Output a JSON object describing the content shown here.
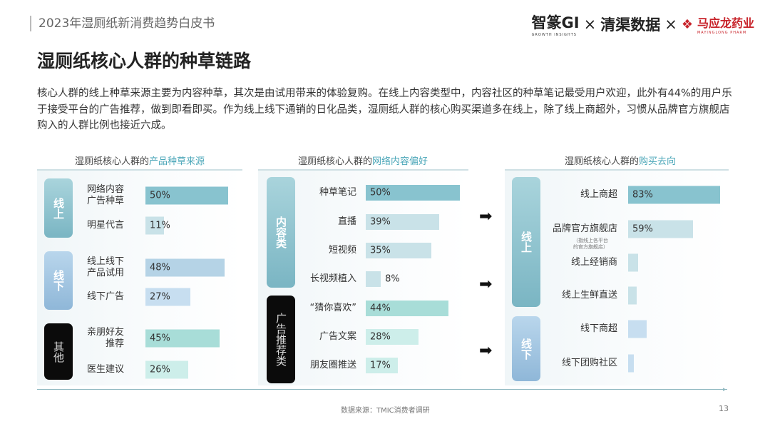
{
  "header": {
    "doc_title": "2023年湿厕纸新消费趋势白皮书",
    "logos": {
      "zhizhuan": "智篆GI",
      "zhizhuan_sub": "GROWTH  INSIGHTS",
      "times": "×",
      "qingqu": "清渠数据",
      "mayinglong": "马应龙药业",
      "mayinglong_sub": "MAYINGLONG PHARM"
    }
  },
  "title": "湿厕纸核心人群的种草链路",
  "intro": "核心人群的线上种草来源主要为内容种草，其次是由试用带来的体验复购。在线上内容类型中，内容社区的种草笔记最受用户欢迎，此外有44%的用户乐于接受平台的广告推荐，做到即看即买。作为线上线下通销的日化品类，湿厕纸人群的核心购买渠道多在线上，除了线上商超外，习惯从品牌官方旗舰店购入的人群比例也接近六成。",
  "colors": {
    "teal": "#7dbfcb",
    "blue": "#9cc4e0",
    "black": "#111111",
    "mint": "#a8ddd8",
    "accent": "#4aa6b8"
  },
  "panels": [
    {
      "title_prefix": "湿厕纸核心人群的",
      "title_highlight": "产品种草来源",
      "groups": [
        {
          "tag": "线上",
          "color": "teal",
          "rows": [
            {
              "label": "网络内容\n广告种草",
              "value": 50,
              "shown": "50%"
            },
            {
              "label": "明星代言",
              "value": 11,
              "shown": "11%"
            }
          ]
        },
        {
          "tag": "线下",
          "color": "blue",
          "rows": [
            {
              "label": "线上线下\n产品试用",
              "value": 48,
              "shown": "48%"
            },
            {
              "label": "线下广告",
              "value": 27,
              "shown": "27%"
            }
          ]
        },
        {
          "tag": "其他",
          "color": "black",
          "rows": [
            {
              "label": "亲朋好友\n推荐",
              "value": 45,
              "shown": "45%"
            },
            {
              "label": "医生建议",
              "value": 26,
              "shown": "26%"
            }
          ]
        }
      ]
    },
    {
      "title_prefix": "湿厕纸核心人群的",
      "title_highlight": "网络内容偏好",
      "groups": [
        {
          "tag": "内容类",
          "color": "teal",
          "rows": [
            {
              "label": "种草笔记",
              "value": 50,
              "shown": "50%"
            },
            {
              "label": "直播",
              "value": 39,
              "shown": "39%"
            },
            {
              "label": "短视频",
              "value": 35,
              "shown": "35%"
            },
            {
              "label": "长视频植入",
              "value": 8,
              "shown": "8%"
            }
          ]
        },
        {
          "tag": "广告推荐类",
          "color": "black",
          "rows": [
            {
              "label": "“猜你喜欢”",
              "value": 44,
              "shown": "44%"
            },
            {
              "label": "广告文案",
              "value": 28,
              "shown": "28%"
            },
            {
              "label": "朋友圈推送",
              "value": 17,
              "shown": "17%"
            }
          ]
        }
      ]
    },
    {
      "title_prefix": "湿厕纸核心人群的",
      "title_highlight": "购买去向",
      "groups": [
        {
          "tag": "线上",
          "color": "teal",
          "rows": [
            {
              "label": "线上商超",
              "value": 83,
              "shown": "83%"
            },
            {
              "label": "品牌官方旗舰店",
              "value": 59,
              "shown": "59%",
              "note": "（指线上各平台\n的官方旗舰店）"
            },
            {
              "label": "线上经销商",
              "value": 9
            },
            {
              "label": "线上生鲜直送",
              "value": 8
            }
          ]
        },
        {
          "tag": "线下",
          "color": "blue",
          "rows": [
            {
              "label": "线下商超",
              "value": 17
            },
            {
              "label": "线下团购社区",
              "value": 5
            }
          ]
        }
      ]
    }
  ],
  "footer": {
    "source": "数据来源：TMIC消费者调研",
    "page": "13"
  }
}
